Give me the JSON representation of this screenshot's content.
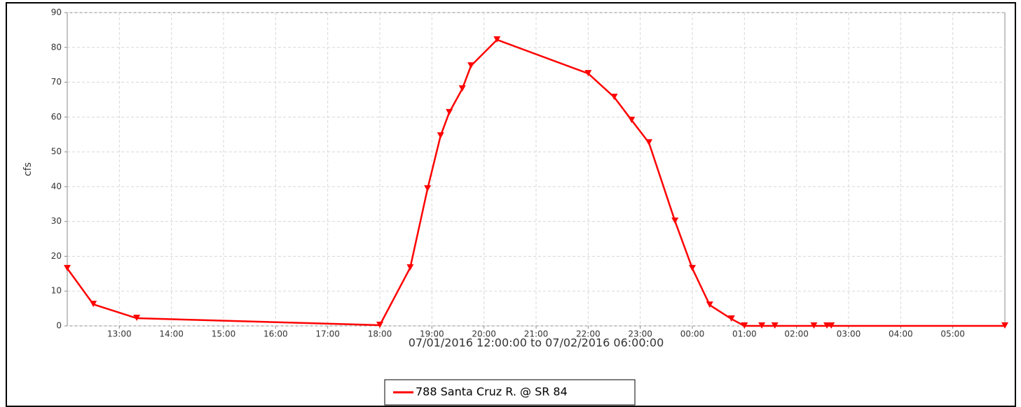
{
  "chart_data": {
    "type": "line",
    "ylabel": "cfs",
    "xlabel": "07/01/2016 12:00:00 to 07/02/2016 06:00:00",
    "x": [
      "12:00",
      "12:30",
      "13:20",
      "18:00",
      "18:35",
      "18:55",
      "19:10",
      "19:20",
      "19:35",
      "19:45",
      "20:15",
      "22:00",
      "22:30",
      "22:50",
      "23:10",
      "23:40",
      "00:00",
      "00:20",
      "00:45",
      "01:00",
      "01:20",
      "01:35",
      "02:20",
      "02:35",
      "02:40",
      "06:00"
    ],
    "series": [
      {
        "name": "788 Santa Cruz R. @ SR 84",
        "color": "#ff0000",
        "values": [
          16.5,
          6.2,
          2.2,
          0.2,
          16.7,
          39.4,
          54.6,
          61.3,
          68.1,
          74.7,
          82.2,
          72.5,
          65.7,
          59.1,
          52.6,
          30.1,
          16.5,
          6.0,
          2.0,
          0,
          0,
          0,
          0,
          0,
          0,
          0
        ]
      }
    ],
    "xlim": [
      "12:00",
      "06:00"
    ],
    "xticks": [
      "13:00",
      "14:00",
      "15:00",
      "16:00",
      "17:00",
      "18:00",
      "19:00",
      "20:00",
      "21:00",
      "22:00",
      "23:00",
      "00:00",
      "01:00",
      "02:00",
      "03:00",
      "04:00",
      "05:00"
    ],
    "ylim": [
      0,
      90
    ],
    "yticks": [
      0,
      10,
      20,
      30,
      40,
      50,
      60,
      70,
      80,
      90
    ],
    "grid": true
  }
}
